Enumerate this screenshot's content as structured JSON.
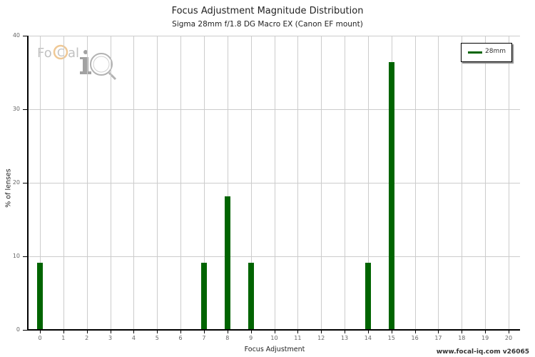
{
  "header": {
    "title": "Focus Adjustment Magnitude Distribution",
    "subtitle": "Sigma 28mm f/1.8 DG Macro EX (Canon EF mount)"
  },
  "logo": {
    "text_left": "Fo",
    "text_right": "al",
    "accent_color": "#e8a040",
    "mark": "iQ"
  },
  "legend": {
    "items": [
      {
        "label": "28mm",
        "color": "#006400"
      }
    ]
  },
  "footer": {
    "watermark": "www.focal-iq.com  v26065"
  },
  "chart_data": {
    "type": "bar",
    "title": "Focus Adjustment Magnitude Distribution",
    "subtitle": "Sigma 28mm f/1.8 DG Macro EX (Canon EF mount)",
    "xlabel": "Focus Adjustment",
    "ylabel": "% of lenses",
    "categories": [
      "0",
      "1",
      "2",
      "3",
      "4",
      "5",
      "6",
      "7",
      "8",
      "9",
      "10",
      "11",
      "12",
      "13",
      "14",
      "15",
      "16",
      "17",
      "18",
      "19",
      "20"
    ],
    "series": [
      {
        "name": "28mm",
        "color": "#006400",
        "values": [
          9.09,
          0,
          0,
          0,
          0,
          0,
          0,
          9.09,
          18.18,
          9.09,
          0,
          0,
          0,
          0,
          9.09,
          36.36,
          0,
          0,
          0,
          0,
          0
        ]
      }
    ],
    "yticks": [
      "0",
      "10",
      "20",
      "30",
      "40"
    ],
    "ylim": [
      0,
      40
    ],
    "xlim": [
      0,
      20
    ],
    "grid": true,
    "legend_position": "top-right"
  }
}
